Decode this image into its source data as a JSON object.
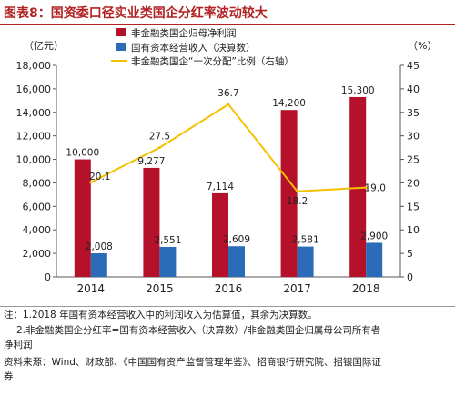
{
  "title": "图表8：国资委口径实业类国企分红率波动较大",
  "notes": {
    "n1": "注：1.2018 年国有资本经营收入中的利润收入为估算值，其余为决算数。",
    "n2a": "2.非金融类国企分红率=国有资本经营收入（决算数）/非金融类国企归属母公司所有者",
    "n2b": "净利润",
    "source_a": "资料来源：Wind、财政部、《中国国有资产监督管理年鉴》、招商银行研究院、招银国际证",
    "source_b": "券"
  },
  "colors": {
    "profit": "#b5112b",
    "revenue": "#2b6cb8",
    "ratio": "#f5c000",
    "title": "#b22222"
  },
  "chart_data": {
    "type": "bar",
    "categories": [
      "2014",
      "2015",
      "2016",
      "2017",
      "2018"
    ],
    "series": [
      {
        "name": "非金融类国企归母净利润",
        "kind": "bar",
        "axis": "left",
        "values": [
          10000,
          9277,
          7114,
          14200,
          15300
        ],
        "labels": [
          "10,000",
          "9,277",
          "7,114",
          "14,200",
          "15,300"
        ]
      },
      {
        "name": "国有资本经营收入（决算数）",
        "kind": "bar",
        "axis": "left",
        "values": [
          2008,
          2551,
          2609,
          2581,
          2900
        ],
        "labels": [
          "2,008",
          "2,551",
          "2,609",
          "2,581",
          "2,900"
        ]
      },
      {
        "name": "非金融类国企“一次分配”比例（右轴）",
        "kind": "line",
        "axis": "right",
        "values": [
          20.1,
          27.5,
          36.7,
          18.2,
          19.0
        ],
        "labels": [
          "20.1",
          "27.5",
          "36.7",
          "18.2",
          "19.0"
        ]
      }
    ],
    "y_left": {
      "label": "（亿元）",
      "range": [
        0,
        18000
      ],
      "ticks": [
        0,
        2000,
        4000,
        6000,
        8000,
        10000,
        12000,
        14000,
        16000,
        18000
      ],
      "tick_labels": [
        "0",
        "2,000",
        "4,000",
        "6,000",
        "8,000",
        "10,000",
        "12,000",
        "14,000",
        "16,000",
        "18,000"
      ]
    },
    "y_right": {
      "label": "（%）",
      "range": [
        0,
        45
      ],
      "ticks": [
        0,
        5,
        10,
        15,
        20,
        25,
        30,
        35,
        40,
        45
      ],
      "tick_labels": [
        "0",
        "5",
        "10",
        "15",
        "20",
        "25",
        "30",
        "35",
        "40",
        "45"
      ]
    },
    "grid": false,
    "legend": "top"
  }
}
